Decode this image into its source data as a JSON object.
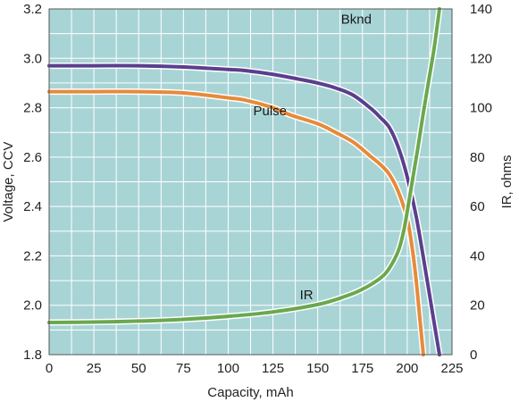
{
  "chart_data": {
    "type": "line",
    "xlabel": "Capacity, mAh",
    "ylabel": "Voltage, CCV",
    "y2label": "IR, ohms",
    "xlim": [
      0,
      225
    ],
    "ylim": [
      1.8,
      3.2
    ],
    "y2lim": [
      0,
      140
    ],
    "x_ticks": [
      "0",
      "25",
      "50",
      "75",
      "100",
      "125",
      "150",
      "175",
      "200",
      "225"
    ],
    "y_ticks": [
      "1.8",
      "2.0",
      "2.2",
      "2.4",
      "2.6",
      "2.8",
      "3.0",
      "3.2"
    ],
    "y2_ticks": [
      "0",
      "20",
      "40",
      "60",
      "80",
      "100",
      "120",
      "140"
    ],
    "grid": true,
    "colors": {
      "plot_background": "#a9d4d6",
      "grid": "#ffffff",
      "Bknd": "#5b3f8e",
      "Pulse": "#e68a3a",
      "IR": "#6aa84f"
    },
    "series": [
      {
        "name": "Bknd",
        "axis": "left",
        "x": [
          0,
          25,
          50,
          75,
          100,
          110,
          125,
          140,
          150,
          160,
          170,
          180,
          185,
          190,
          195,
          200,
          205,
          210,
          215,
          218
        ],
        "y": [
          2.97,
          2.97,
          2.97,
          2.965,
          2.955,
          2.95,
          2.935,
          2.915,
          2.9,
          2.88,
          2.85,
          2.795,
          2.76,
          2.72,
          2.64,
          2.52,
          2.36,
          2.15,
          1.93,
          1.8
        ]
      },
      {
        "name": "Pulse",
        "axis": "left",
        "x": [
          0,
          25,
          50,
          75,
          100,
          110,
          125,
          135,
          150,
          160,
          170,
          180,
          185,
          190,
          195,
          200,
          203,
          205,
          207,
          209
        ],
        "y": [
          2.865,
          2.865,
          2.865,
          2.86,
          2.84,
          2.83,
          2.8,
          2.77,
          2.735,
          2.7,
          2.66,
          2.6,
          2.57,
          2.53,
          2.46,
          2.35,
          2.22,
          2.1,
          1.95,
          1.8
        ]
      },
      {
        "name": "IR",
        "axis": "right",
        "x": [
          0,
          25,
          50,
          75,
          100,
          125,
          150,
          165,
          175,
          185,
          190,
          195,
          198,
          200,
          203,
          206,
          209,
          212,
          215,
          218
        ],
        "y": [
          13,
          13.2,
          13.6,
          14.3,
          15.5,
          17.3,
          20.3,
          23.5,
          26.5,
          31,
          35,
          42,
          50,
          58,
          71,
          84,
          98,
          111,
          124,
          140
        ]
      }
    ],
    "annotations": [
      {
        "text": "Bknd",
        "x": 163,
        "y": 3.14,
        "axis": "left"
      },
      {
        "text": "Pulse",
        "x": 114,
        "y": 2.77,
        "axis": "left"
      },
      {
        "text": "IR",
        "x": 140,
        "y": 22.5,
        "axis": "right"
      }
    ]
  }
}
